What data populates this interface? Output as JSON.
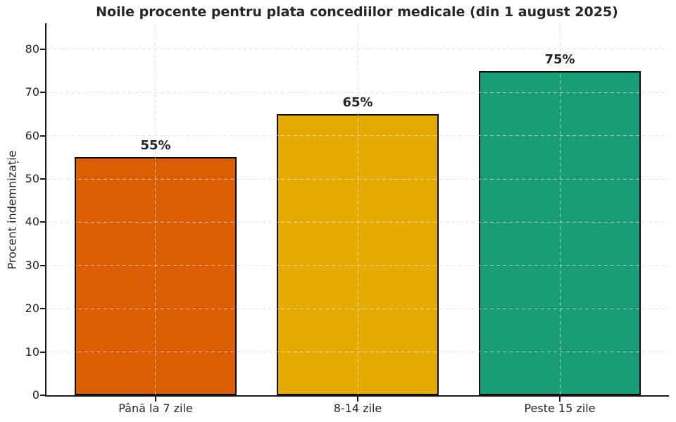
{
  "chart_data": {
    "type": "bar",
    "title": "Noile procente pentru plata concediilor medicale (din 1 august 2025)",
    "ylabel": "Procent indemnizație",
    "xlabel": "",
    "categories": [
      "Până la 7 zile",
      "8-14 zile",
      "Peste 15 zile"
    ],
    "values": [
      55,
      65,
      75
    ],
    "bar_labels": [
      "55%",
      "65%",
      "75%"
    ],
    "bar_colors": [
      "#d95f02",
      "#e6ab02",
      "#1b9e77"
    ],
    "bar_edge_color": "#0d0d0d",
    "bar_width_fraction": 0.8,
    "ylim": [
      0,
      86
    ],
    "xlim": [
      -0.54,
      2.54
    ],
    "yticks": [
      0,
      10,
      20,
      30,
      40,
      50,
      60,
      70,
      80
    ],
    "grid": "dashed, horizontal at yticks and vertical at bar centers",
    "grid_color": "#cccccc",
    "axis_color": "#1a1a1a",
    "text_color": "#262626",
    "background_color": "#ffffff",
    "legend": "none"
  }
}
